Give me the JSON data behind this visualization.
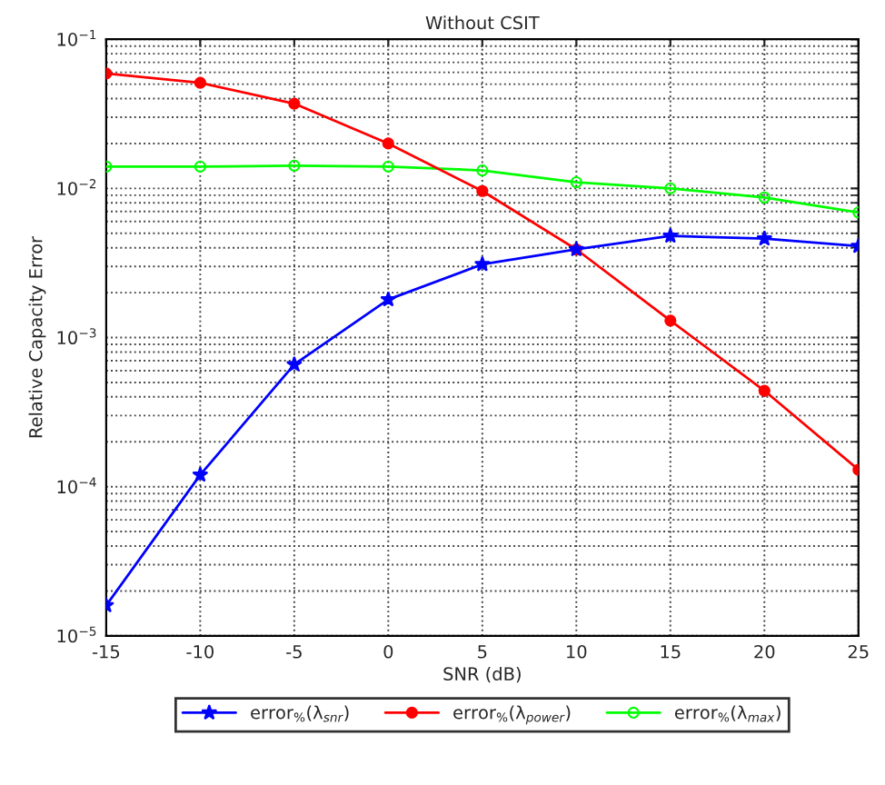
{
  "chart_data": {
    "type": "line",
    "title": "Without CSIT",
    "xlabel": "SNR (dB)",
    "ylabel": "Relative Capacity Error",
    "x": [
      -15,
      -10,
      -5,
      0,
      5,
      10,
      15,
      20,
      25
    ],
    "series": [
      {
        "name": "error$_{%}$(λ$_{snr}$)",
        "color": "#0000ff",
        "marker": "star",
        "values": [
          1.6e-05,
          0.00012,
          0.00066,
          0.0018,
          0.0031,
          0.0039,
          0.0048,
          0.0046,
          0.0041
        ]
      },
      {
        "name": "error$_{%}$(λ$_{power}$)",
        "color": "#ff0000",
        "marker": "circle",
        "values": [
          0.059,
          0.051,
          0.037,
          0.02,
          0.0096,
          0.0039,
          0.0013,
          0.00044,
          0.00013
        ]
      },
      {
        "name": "error$_{%}$(λ$_{max}$)",
        "color": "#00ff00",
        "marker": "circle",
        "values": [
          0.014,
          0.014,
          0.0142,
          0.014,
          0.0132,
          0.011,
          0.01,
          0.0087,
          0.0069
        ]
      }
    ],
    "log": true,
    "xlim": [
      -15,
      25
    ],
    "ylim": [
      1e-05,
      0.1
    ],
    "xticks": [
      -15,
      -10,
      -5,
      0,
      5,
      10,
      15,
      20,
      25
    ],
    "yticks": [
      {
        "value": 1e-05,
        "label": "10$^{−5}$"
      },
      {
        "value": 0.0001,
        "label": "10$^{−4}$"
      },
      {
        "value": 0.001,
        "label": "10$^{−3}$"
      },
      {
        "value": 0.01,
        "label": "10$^{−2}$"
      },
      {
        "value": 0.1,
        "label": "10$^{−1}$"
      }
    ],
    "grid": true,
    "legend": "bottom",
    "line_style": "solid"
  }
}
